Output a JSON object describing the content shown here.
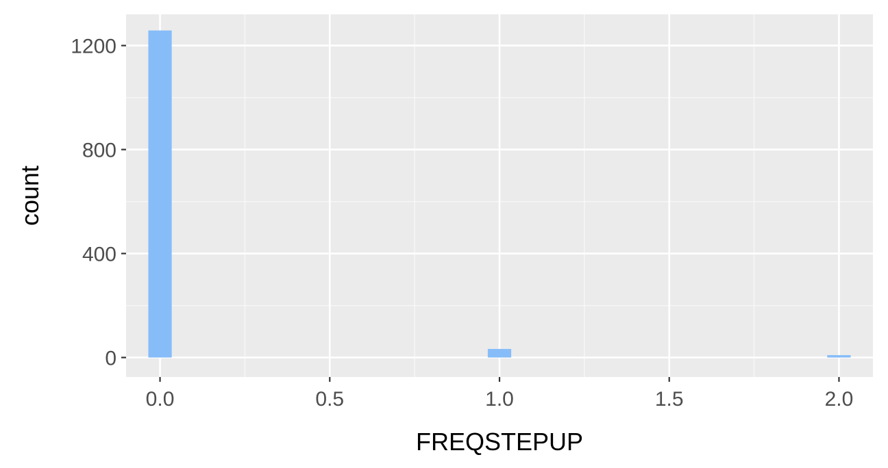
{
  "chart_data": {
    "type": "bar",
    "title": "",
    "xlabel": "FREQSTEPUP",
    "ylabel": "count",
    "xlim": [
      -0.1,
      2.1
    ],
    "ylim": [
      -75,
      1320
    ],
    "x_ticks": [
      0.0,
      0.5,
      1.0,
      1.5,
      2.0
    ],
    "x_tick_labels": [
      "0.0",
      "0.5",
      "1.0",
      "1.5",
      "2.0"
    ],
    "y_ticks": [
      0,
      400,
      800,
      1200
    ],
    "y_tick_labels": [
      "0",
      "400",
      "800",
      "1200"
    ],
    "bin_width": 0.069,
    "bins": [
      {
        "x": 0.0,
        "count": 1258
      },
      {
        "x": 1.0,
        "count": 33
      },
      {
        "x": 2.0,
        "count": 9
      }
    ],
    "grid": true,
    "legend": "none",
    "colors": {
      "panel_background": "#ebebeb",
      "grid_major": "#ffffff",
      "grid_minor": "#f7f7f7",
      "bar_fill": "#86bcf8",
      "tick_mark": "#333333"
    }
  }
}
